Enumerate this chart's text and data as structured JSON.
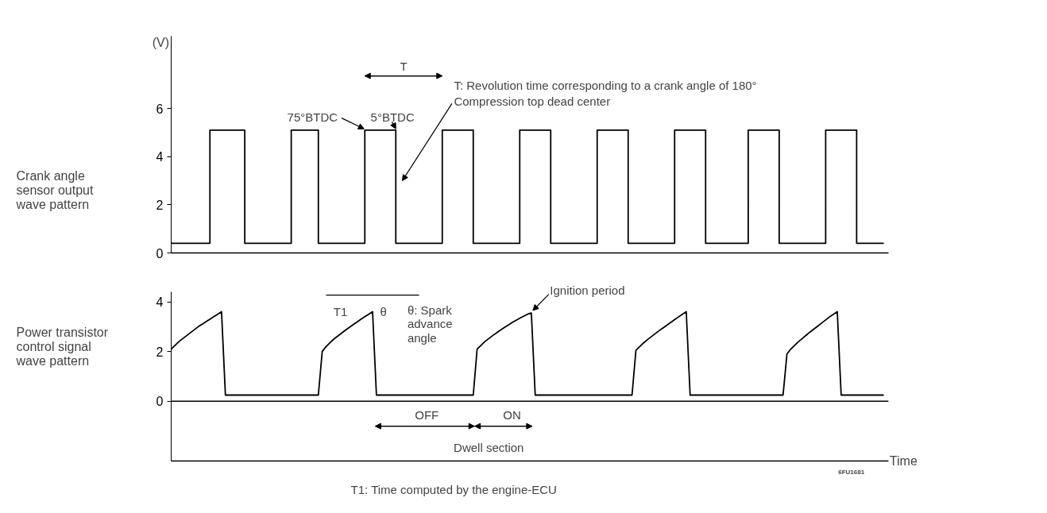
{
  "chart_data": [
    {
      "type": "step",
      "ylabel": "(V)",
      "ylim": [
        0,
        9
      ],
      "yticks": [
        0,
        2,
        4,
        6
      ],
      "grid": false,
      "tick_labels": "y",
      "categories": [
        null,
        null,
        null,
        null,
        null,
        null,
        null,
        null,
        null,
        null,
        null,
        null,
        null,
        null,
        null,
        null,
        null,
        null,
        null,
        null,
        null,
        null,
        null,
        null,
        null,
        null,
        null,
        null,
        null,
        null,
        null,
        null,
        null,
        null,
        null,
        null,
        null,
        null,
        null,
        null,
        null,
        null,
        null,
        null,
        null,
        null,
        null,
        null,
        null,
        null,
        null,
        null,
        null,
        null,
        null,
        null,
        null,
        null,
        null,
        null,
        null,
        null,
        null,
        null,
        null,
        null,
        null,
        null,
        null,
        null,
        null,
        null,
        null,
        null,
        null,
        null,
        null,
        null,
        null,
        null,
        null,
        null,
        null,
        null,
        null,
        null,
        null,
        null,
        null,
        null,
        null,
        null,
        null,
        null,
        null,
        null,
        null,
        null,
        null,
        null,
        null,
        null,
        null,
        null,
        null,
        null,
        null,
        null,
        null,
        null,
        null,
        null,
        null,
        null,
        null,
        null,
        null,
        null,
        null,
        null,
        null,
        null,
        null,
        null,
        null,
        null,
        null,
        null,
        null,
        null,
        null,
        null,
        null,
        null,
        null,
        null,
        null,
        null,
        null,
        null,
        null,
        null,
        null,
        null,
        null,
        null,
        null,
        null,
        null,
        null,
        null,
        null,
        null,
        null,
        null,
        null,
        null,
        null,
        null,
        null,
        null,
        null,
        null,
        null,
        null,
        null,
        null,
        null,
        null,
        null,
        null,
        null,
        null,
        null,
        null,
        null,
        null,
        null,
        null,
        null,
        null,
        null,
        null,
        null,
        null
      ],
      "series": [
        {
          "name": "Crank angle sensor output wave pattern",
          "color": "#000000",
          "values": [
            0.4,
            0.4,
            0.4,
            0.4,
            0.4,
            0.4,
            0.4,
            0.4,
            0.4,
            0.4,
            5.1,
            5.1,
            5.1,
            5.1,
            5.1,
            5.1,
            5.1,
            5.1,
            5.1,
            0.4,
            0.4,
            0.4,
            0.4,
            0.4,
            0.4,
            0.4,
            0.4,
            0.4,
            0.4,
            0.4,
            0.4,
            5.1,
            5.1,
            5.1,
            5.1,
            5.1,
            5.1,
            5.1,
            0.4,
            0.4,
            0.4,
            0.4,
            0.4,
            0.4,
            0.4,
            0.4,
            0.4,
            0.4,
            0.4,
            0.4,
            5.1,
            5.1,
            5.1,
            5.1,
            5.1,
            5.1,
            5.1,
            5.1,
            0.4,
            0.4,
            0.4,
            0.4,
            0.4,
            0.4,
            0.4,
            0.4,
            0.4,
            0.4,
            0.4,
            0.4,
            5.1,
            5.1,
            5.1,
            5.1,
            5.1,
            5.1,
            5.1,
            5.1,
            0.4,
            0.4,
            0.4,
            0.4,
            0.4,
            0.4,
            0.4,
            0.4,
            0.4,
            0.4,
            0.4,
            0.4,
            5.1,
            5.1,
            5.1,
            5.1,
            5.1,
            5.1,
            5.1,
            5.1,
            0.4,
            0.4,
            0.4,
            0.4,
            0.4,
            0.4,
            0.4,
            0.4,
            0.4,
            0.4,
            0.4,
            0.4,
            5.1,
            5.1,
            5.1,
            5.1,
            5.1,
            5.1,
            5.1,
            5.1,
            0.4,
            0.4,
            0.4,
            0.4,
            0.4,
            0.4,
            0.4,
            0.4,
            0.4,
            0.4,
            0.4,
            0.4,
            5.1,
            5.1,
            5.1,
            5.1,
            5.1,
            5.1,
            5.1,
            5.1,
            0.4,
            0.4,
            0.4,
            0.4,
            0.4,
            0.4,
            0.4,
            0.4,
            0.4,
            0.4,
            0.4,
            5.1,
            5.1,
            5.1,
            5.1,
            5.1,
            5.1,
            5.1,
            5.1,
            0.4,
            0.4,
            0.4,
            0.4,
            0.4,
            0.4,
            0.4,
            0.4,
            0.4,
            0.4,
            0.4,
            0.4,
            5.1,
            5.1,
            5.1,
            5.1,
            5.1,
            5.1,
            5.1,
            5.1,
            0.4,
            0.4,
            0.4,
            0.4,
            0.4,
            0.4,
            0.4,
            0.4
          ]
        }
      ],
      "annotations": [
        "75°BTDC",
        "5°BTDC",
        "T",
        "T: Revolution time corresponding to a crank angle of 180°",
        "Compression top dead center"
      ]
    },
    {
      "type": "line",
      "xlabel": "Time",
      "ylim": [
        -2.4,
        4.4
      ],
      "yticks": [
        0,
        2,
        4
      ],
      "grid": false,
      "tick_labels": "y",
      "categories": [
        null,
        null,
        null,
        null,
        null,
        null,
        null,
        null,
        null,
        null,
        null,
        null,
        null,
        null,
        null,
        null,
        null,
        null,
        null,
        null,
        null,
        null,
        null,
        null,
        null,
        null,
        null,
        null,
        null,
        null,
        null,
        null,
        null,
        null,
        null,
        null,
        null,
        null,
        null,
        null,
        null,
        null,
        null,
        null,
        null,
        null,
        null,
        null,
        null,
        null,
        null,
        null,
        null,
        null,
        null,
        null,
        null,
        null,
        null,
        null,
        null,
        null,
        null,
        null,
        null,
        null,
        null,
        null,
        null,
        null,
        null,
        null,
        null,
        null,
        null,
        null,
        null,
        null,
        null,
        null,
        null,
        null,
        null,
        null,
        null,
        null,
        null,
        null,
        null,
        null,
        null,
        null,
        null,
        null,
        null,
        null,
        null,
        null,
        null,
        null,
        null,
        null,
        null,
        null,
        null,
        null,
        null,
        null,
        null,
        null,
        null,
        null,
        null,
        null,
        null,
        null,
        null,
        null,
        null,
        null,
        null,
        null,
        null,
        null,
        null,
        null,
        null,
        null,
        null,
        null,
        null,
        null,
        null,
        null,
        null,
        null,
        null,
        null,
        null,
        null,
        null,
        null,
        null,
        null,
        null,
        null,
        null,
        null,
        null,
        null,
        null,
        null,
        null,
        null,
        null,
        null,
        null,
        null,
        null,
        null,
        null,
        null,
        null,
        null,
        null,
        null,
        null,
        null,
        null,
        null,
        null,
        null,
        null,
        null,
        null,
        null,
        null,
        null,
        null,
        null,
        null,
        null,
        null,
        null,
        null
      ],
      "series": [
        {
          "name": "Power transistor control signal wave pattern",
          "color": "#000000",
          "values": [
            2.1,
            2.25,
            2.4,
            2.52,
            2.64,
            2.76,
            2.88,
            3.0,
            3.1,
            3.2,
            3.3,
            3.4,
            3.5,
            3.6,
            0.25,
            0.25,
            0.25,
            0.25,
            0.25,
            0.25,
            0.25,
            0.25,
            0.25,
            0.25,
            0.25,
            0.25,
            0.25,
            0.25,
            0.25,
            0.25,
            0.25,
            0.25,
            0.25,
            0.25,
            0.25,
            0.25,
            0.25,
            0.25,
            0.25,
            2.0,
            2.2,
            2.35,
            2.5,
            2.62,
            2.74,
            2.86,
            2.97,
            3.08,
            3.19,
            3.3,
            3.4,
            3.5,
            3.6,
            0.25,
            0.25,
            0.25,
            0.25,
            0.25,
            0.25,
            0.25,
            0.25,
            0.25,
            0.25,
            0.25,
            0.25,
            0.25,
            0.25,
            0.25,
            0.25,
            0.25,
            0.25,
            0.25,
            0.25,
            0.25,
            0.25,
            0.25,
            0.25,
            0.25,
            0.25,
            2.1,
            2.25,
            2.4,
            2.52,
            2.64,
            2.75,
            2.86,
            2.96,
            3.06,
            3.16,
            3.25,
            3.34,
            3.42,
            3.5,
            3.55,
            0.25,
            0.25,
            0.25,
            0.25,
            0.25,
            0.25,
            0.25,
            0.25,
            0.25,
            0.25,
            0.25,
            0.25,
            0.25,
            0.25,
            0.25,
            0.25,
            0.25,
            0.25,
            0.25,
            0.25,
            0.25,
            0.25,
            0.25,
            0.25,
            0.25,
            0.25,
            2.05,
            2.2,
            2.35,
            2.48,
            2.6,
            2.72,
            2.84,
            2.95,
            3.06,
            3.17,
            3.28,
            3.39,
            3.5,
            3.6,
            0.25,
            0.25,
            0.25,
            0.25,
            0.25,
            0.25,
            0.25,
            0.25,
            0.25,
            0.25,
            0.25,
            0.25,
            0.25,
            0.25,
            0.25,
            0.25,
            0.25,
            0.25,
            0.25,
            0.25,
            0.25,
            0.25,
            0.25,
            0.25,
            0.25,
            1.9,
            2.1,
            2.25,
            2.4,
            2.53,
            2.66,
            2.79,
            2.91,
            3.03,
            3.15,
            3.27,
            3.39,
            3.5,
            3.6,
            0.25,
            0.25,
            0.25,
            0.25,
            0.25,
            0.25,
            0.25,
            0.25,
            0.25,
            0.25,
            0.25,
            0.25
          ]
        }
      ],
      "ref_lines": [
        {
          "axis": "y",
          "value": 0,
          "color": "#000000"
        }
      ],
      "annotations": [
        "T1",
        "θ",
        "θ: Spark advance angle",
        "Ignition period",
        "OFF",
        "ON",
        "Dwell section",
        "6FU1681",
        "T1: Time computed by the engine-ECU"
      ]
    }
  ]
}
